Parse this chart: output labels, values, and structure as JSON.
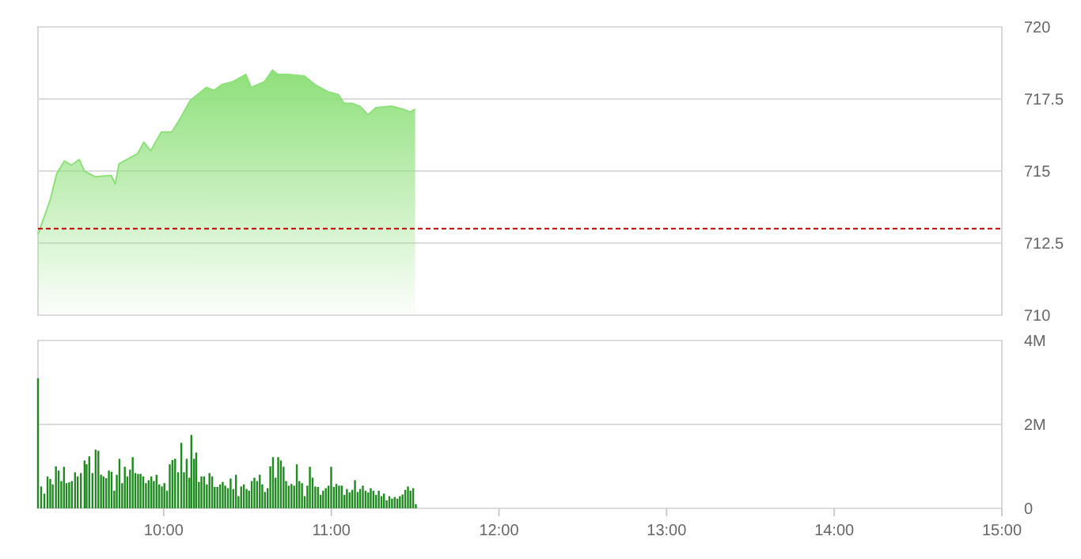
{
  "chart_data": [
    {
      "type": "area",
      "x": [
        9.25,
        9.323,
        9.361,
        9.408,
        9.449,
        9.496,
        9.527,
        9.591,
        9.686,
        9.711,
        9.733,
        9.844,
        9.882,
        9.922,
        9.986,
        10.048,
        10.096,
        10.159,
        10.254,
        10.301,
        10.348,
        10.412,
        10.49,
        10.522,
        10.601,
        10.649,
        10.68,
        10.743,
        10.838,
        10.901,
        10.98,
        11.043,
        11.075,
        11.122,
        11.17,
        11.219,
        11.266,
        11.361,
        11.424,
        11.471,
        11.5
      ],
      "series": [
        {
          "color": "#8ee07a",
          "values": [
            712.8,
            714.0,
            714.9,
            715.35,
            715.2,
            715.4,
            715.0,
            714.8,
            714.85,
            714.55,
            715.25,
            715.6,
            716.0,
            715.7,
            716.35,
            716.35,
            716.8,
            717.45,
            717.9,
            717.8,
            718.0,
            718.1,
            718.35,
            717.9,
            718.1,
            718.5,
            718.35,
            718.35,
            718.3,
            718.0,
            717.75,
            717.65,
            717.35,
            717.35,
            717.25,
            716.95,
            717.2,
            717.25,
            717.15,
            717.05,
            717.15
          ]
        }
      ],
      "xlim": [
        9.25,
        15
      ],
      "ylim": [
        710,
        720
      ],
      "yticks": [
        710,
        712.5,
        715,
        717.5,
        720
      ],
      "grid": "y",
      "tick_labels": "y",
      "ref_lines": [
        {
          "axis": "y",
          "value": 713.0,
          "color": "#c00000",
          "line_style": "dashed"
        }
      ]
    },
    {
      "type": "bar",
      "x": [
        9.25,
        9.269,
        9.288,
        9.307,
        9.323,
        9.338,
        9.357,
        9.373,
        9.389,
        9.405,
        9.42,
        9.436,
        9.452,
        9.471,
        9.487,
        9.506,
        9.528,
        9.54,
        9.556,
        9.575,
        9.594,
        9.61,
        9.626,
        9.641,
        9.657,
        9.673,
        9.689,
        9.705,
        9.72,
        9.736,
        9.752,
        9.768,
        9.783,
        9.799,
        9.815,
        9.831,
        9.847,
        9.862,
        9.878,
        9.894,
        9.91,
        9.926,
        9.941,
        9.957,
        9.973,
        9.989,
        10.004,
        10.02,
        10.036,
        10.052,
        10.068,
        10.086,
        10.105,
        10.121,
        10.137,
        10.153,
        10.165,
        10.181,
        10.194,
        10.21,
        10.225,
        10.241,
        10.257,
        10.273,
        10.289,
        10.304,
        10.32,
        10.336,
        10.352,
        10.367,
        10.383,
        10.399,
        10.415,
        10.431,
        10.446,
        10.462,
        10.478,
        10.494,
        10.509,
        10.525,
        10.541,
        10.557,
        10.573,
        10.588,
        10.604,
        10.62,
        10.636,
        10.652,
        10.667,
        10.683,
        10.699,
        10.715,
        10.73,
        10.746,
        10.762,
        10.778,
        10.794,
        10.809,
        10.825,
        10.841,
        10.857,
        10.872,
        10.888,
        10.904,
        10.92,
        10.936,
        10.951,
        10.967,
        10.983,
        10.999,
        11.015,
        11.03,
        11.046,
        11.062,
        11.078,
        11.093,
        11.109,
        11.125,
        11.141,
        11.157,
        11.172,
        11.188,
        11.204,
        11.22,
        11.235,
        11.251,
        11.267,
        11.283,
        11.299,
        11.314,
        11.33,
        11.346,
        11.362,
        11.378,
        11.394,
        11.409,
        11.425,
        11.441,
        11.457,
        11.472,
        11.488,
        11.504
      ],
      "series": [
        {
          "color": "#1f8a1f",
          "values": [
            3.1,
            0.52,
            0.35,
            0.76,
            0.7,
            0.57,
            1.0,
            0.9,
            0.65,
            0.99,
            0.6,
            0.62,
            0.65,
            0.86,
            0.76,
            0.84,
            1.14,
            1.05,
            1.24,
            0.84,
            1.4,
            1.37,
            0.8,
            0.76,
            0.72,
            0.9,
            0.87,
            0.42,
            0.8,
            1.18,
            0.6,
            0.99,
            0.76,
            0.92,
            1.22,
            0.84,
            0.82,
            0.82,
            0.76,
            0.6,
            0.67,
            0.76,
            0.65,
            0.8,
            0.57,
            0.52,
            0.6,
            0.42,
            1.05,
            1.15,
            1.18,
            0.86,
            1.56,
            0.86,
            1.18,
            0.73,
            1.75,
            1.18,
            1.33,
            0.63,
            0.76,
            0.76,
            0.57,
            0.84,
            0.76,
            0.51,
            0.51,
            0.57,
            0.63,
            0.54,
            0.48,
            0.71,
            0.46,
            0.8,
            0.29,
            0.52,
            0.57,
            0.46,
            0.42,
            0.65,
            0.73,
            0.65,
            0.8,
            0.57,
            0.39,
            0.48,
            1.0,
            1.22,
            0.73,
            1.22,
            1.14,
            0.99,
            0.65,
            0.54,
            0.58,
            0.54,
            1.05,
            0.65,
            0.6,
            0.29,
            0.54,
            0.99,
            0.73,
            0.52,
            0.51,
            0.32,
            0.42,
            0.48,
            0.54,
            0.99,
            0.51,
            0.58,
            0.54,
            0.54,
            0.32,
            0.46,
            0.38,
            0.44,
            0.67,
            0.39,
            0.46,
            0.54,
            0.42,
            0.38,
            0.48,
            0.42,
            0.32,
            0.42,
            0.29,
            0.35,
            0.19,
            0.29,
            0.23,
            0.27,
            0.23,
            0.29,
            0.33,
            0.44,
            0.52,
            0.42,
            0.48,
            0.1
          ]
        }
      ],
      "xlim": [
        9.25,
        15
      ],
      "xticks": [
        {
          "value": 10,
          "label": "10:00"
        },
        {
          "value": 11,
          "label": "11:00"
        },
        {
          "value": 12,
          "label": "12:00"
        },
        {
          "value": 13,
          "label": "13:00"
        },
        {
          "value": 14,
          "label": "14:00"
        },
        {
          "value": 15,
          "label": "15:00"
        }
      ],
      "ylim": [
        0,
        4
      ],
      "yticks": [
        {
          "value": 0,
          "label": "0"
        },
        {
          "value": 2,
          "label": "2M"
        },
        {
          "value": 4,
          "label": "4M"
        }
      ],
      "grid": "y"
    }
  ]
}
